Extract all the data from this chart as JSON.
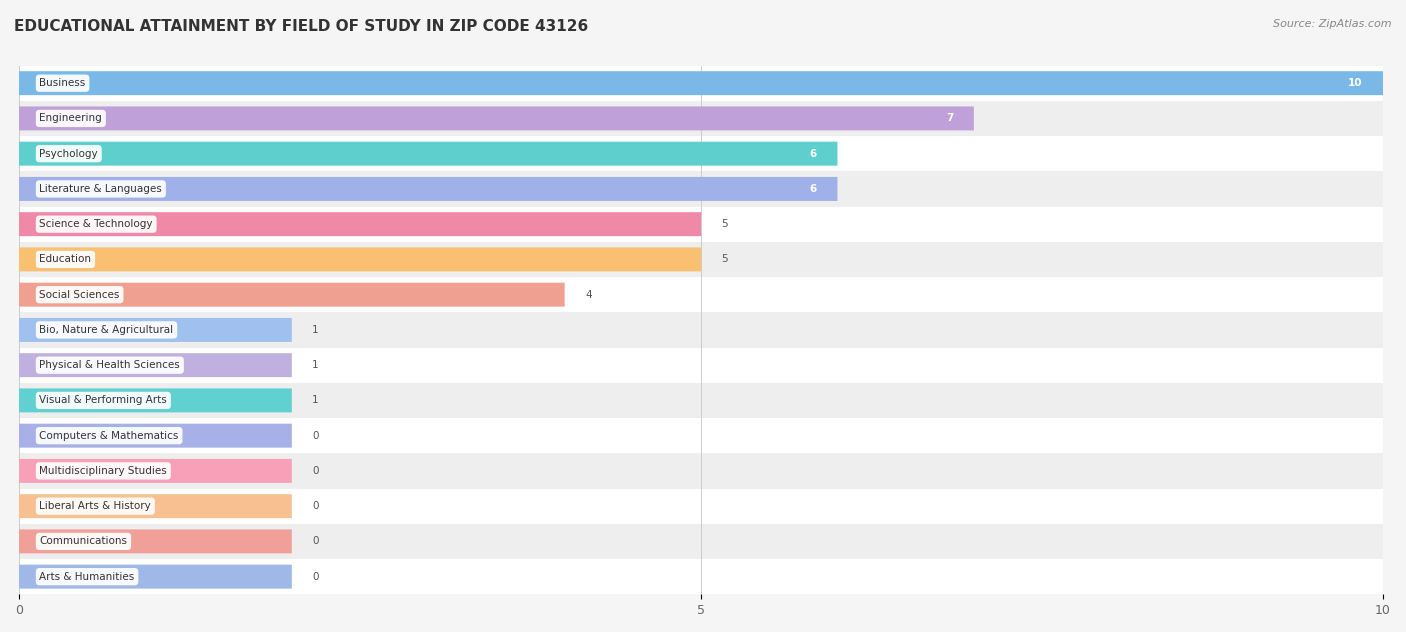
{
  "title": "EDUCATIONAL ATTAINMENT BY FIELD OF STUDY IN ZIP CODE 43126",
  "source": "Source: ZipAtlas.com",
  "categories": [
    "Business",
    "Engineering",
    "Psychology",
    "Literature & Languages",
    "Science & Technology",
    "Education",
    "Social Sciences",
    "Bio, Nature & Agricultural",
    "Physical & Health Sciences",
    "Visual & Performing Arts",
    "Computers & Mathematics",
    "Multidisciplinary Studies",
    "Liberal Arts & History",
    "Communications",
    "Arts & Humanities"
  ],
  "values": [
    10,
    7,
    6,
    6,
    5,
    5,
    4,
    1,
    1,
    1,
    0,
    0,
    0,
    0,
    0
  ],
  "bar_colors": [
    "#7ab8e8",
    "#c0a0d8",
    "#5ecfcc",
    "#a0b0e8",
    "#f088a8",
    "#f8c070",
    "#f0a090",
    "#a0c0f0",
    "#c0b0e0",
    "#60d0d0",
    "#a8b0e8",
    "#f8a0b8",
    "#f8c090",
    "#f0a098",
    "#a0b8e8"
  ],
  "xlim": [
    0,
    10
  ],
  "xticks": [
    0,
    5,
    10
  ],
  "background_color": "#f5f5f5",
  "row_bg_even": "#ffffff",
  "row_bg_odd": "#eeeeee",
  "title_fontsize": 11,
  "source_fontsize": 8,
  "bar_height": 0.68,
  "min_bar_width": 2.0
}
